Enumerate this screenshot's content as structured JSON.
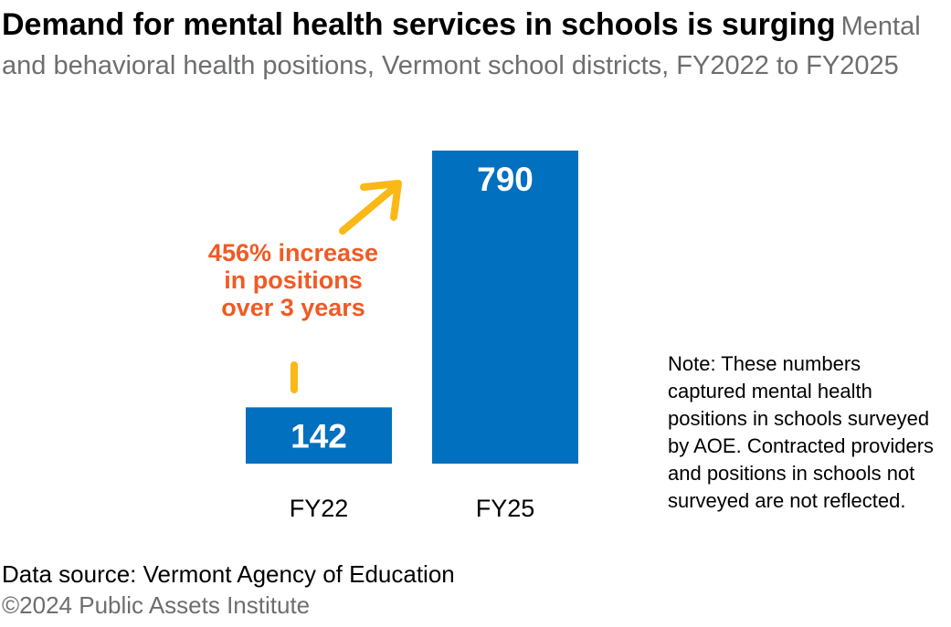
{
  "colors": {
    "bar": "#0070bf",
    "accent": "#f15a24",
    "arrow": "#fbb816",
    "muted": "#6d6e71"
  },
  "chart_data": {
    "type": "bar",
    "title": "Demand for mental health services in schools is surging",
    "subtitle": "Mental and behavioral health positions, Vermont school districts, FY2022 to FY2025",
    "categories": [
      "FY22",
      "FY25"
    ],
    "values": [
      142,
      790
    ],
    "value_labels": [
      "142",
      "790"
    ],
    "xlabel": "",
    "ylabel": "",
    "ylim": [
      0,
      790
    ],
    "grid": false,
    "annotation": "456% increase in positions over 3 years"
  },
  "note": "Note: These numbers captured mental health positions in schools surveyed by AOE. Contracted providers and positions in schools not surveyed are not reflected.",
  "source": "Data source: Vermont Agency of Education",
  "copyright": "©2024 Public Assets Institute"
}
